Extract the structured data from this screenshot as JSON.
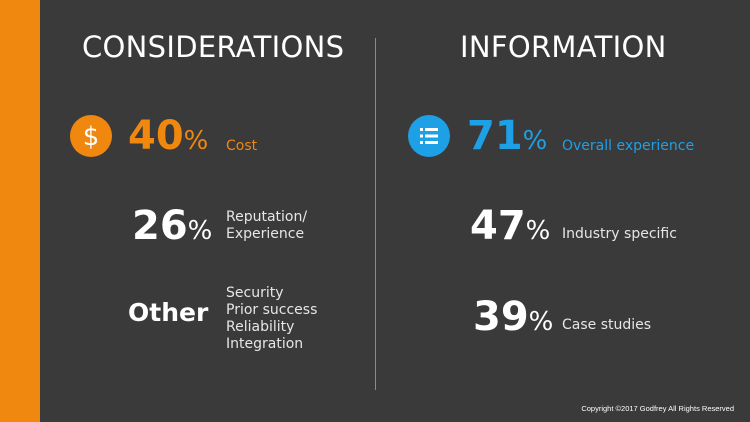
{
  "colors": {
    "background": "#3a3a3a",
    "orange": "#f0870f",
    "blue": "#1ea0e6",
    "white": "#ffffff"
  },
  "left": {
    "heading": "CONSIDERATIONS",
    "stats": [
      {
        "value": "40",
        "unit": "%",
        "label": "Cost",
        "icon": "dollar-icon"
      },
      {
        "value": "26",
        "unit": "%",
        "label_lines": [
          "Reputation/",
          "Experience"
        ]
      },
      {
        "value": "Other",
        "label_lines": [
          "Security",
          "Prior success",
          "Reliability",
          "Integration"
        ]
      }
    ]
  },
  "right": {
    "heading": "INFORMATION",
    "stats": [
      {
        "value": "71",
        "unit": "%",
        "label": "Overall experience",
        "icon": "list-icon"
      },
      {
        "value": "47",
        "unit": "%",
        "label": "Industry specific"
      },
      {
        "value": "39",
        "unit": "%",
        "label": "Case studies"
      }
    ]
  },
  "footer": {
    "copyright": "Copyright ©2017 Godfrey All Rights Reserved"
  }
}
